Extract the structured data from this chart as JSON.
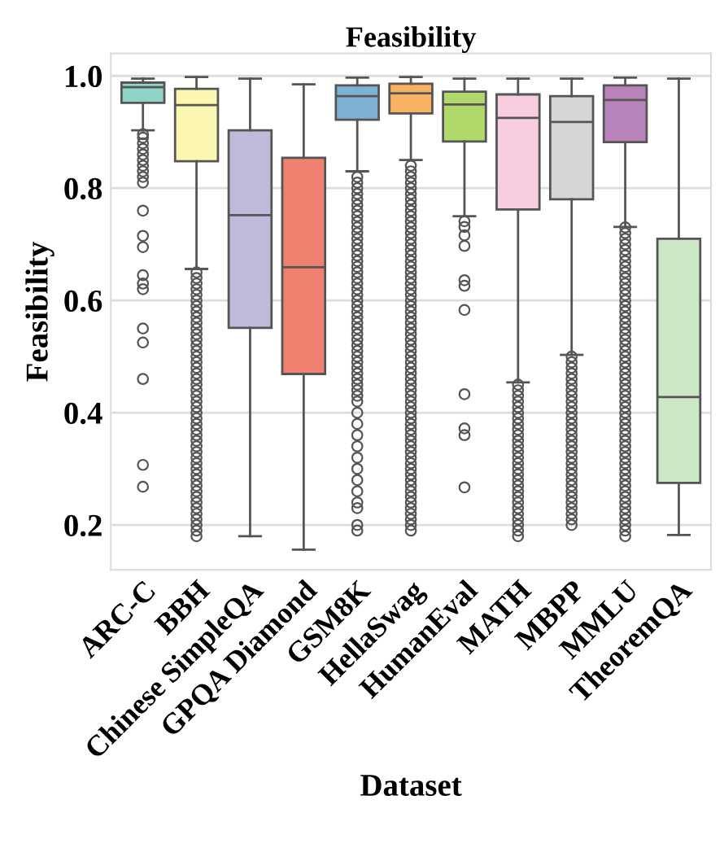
{
  "chart_data": {
    "type": "box",
    "title": "Feasibility",
    "xlabel": "Dataset",
    "ylabel": "Feasibility",
    "categories": [
      "ARC-C",
      "BBH",
      "Chinese SimpleQA",
      "GPQA Diamond",
      "GSM8K",
      "HellaSwag",
      "HumanEval",
      "MATH",
      "MBPP",
      "MMLU",
      "TheoremQA"
    ],
    "colors": [
      "#8dd3c7",
      "#fcf7b0",
      "#bebada",
      "#f08070",
      "#80b1d3",
      "#f8b062",
      "#b0d86a",
      "#f8cde0",
      "#d6d6d6",
      "#b983bb",
      "#cde8c6"
    ],
    "boxes": [
      {
        "low": 0.903,
        "q1": 0.952,
        "median": 0.98,
        "q3": 0.988,
        "high": 0.995,
        "outliers": [
          0.896,
          0.89,
          0.88,
          0.87,
          0.86,
          0.85,
          0.84,
          0.83,
          0.82,
          0.81,
          0.76,
          0.715,
          0.695,
          0.645,
          0.63,
          0.62,
          0.55,
          0.525,
          0.46,
          0.307,
          0.268
        ]
      },
      {
        "low": 0.656,
        "q1": 0.848,
        "median": 0.948,
        "q3": 0.977,
        "high": 0.998,
        "outliers": [
          0.65,
          0.64,
          0.63,
          0.62,
          0.61,
          0.6,
          0.59,
          0.58,
          0.57,
          0.56,
          0.55,
          0.54,
          0.53,
          0.52,
          0.51,
          0.5,
          0.49,
          0.48,
          0.47,
          0.46,
          0.45,
          0.44,
          0.43,
          0.42,
          0.41,
          0.4,
          0.39,
          0.38,
          0.37,
          0.36,
          0.35,
          0.34,
          0.33,
          0.32,
          0.31,
          0.3,
          0.29,
          0.28,
          0.27,
          0.26,
          0.25,
          0.24,
          0.23,
          0.22,
          0.21,
          0.2,
          0.19,
          0.18
        ]
      },
      {
        "low": 0.18,
        "q1": 0.551,
        "median": 0.752,
        "q3": 0.903,
        "high": 0.995
      },
      {
        "low": 0.156,
        "q1": 0.469,
        "median": 0.659,
        "q3": 0.854,
        "high": 0.985
      },
      {
        "low": 0.83,
        "q1": 0.922,
        "median": 0.964,
        "q3": 0.983,
        "high": 0.997,
        "outliers": [
          0.82,
          0.81,
          0.8,
          0.79,
          0.78,
          0.77,
          0.76,
          0.75,
          0.74,
          0.73,
          0.72,
          0.71,
          0.7,
          0.69,
          0.68,
          0.67,
          0.66,
          0.65,
          0.64,
          0.63,
          0.62,
          0.61,
          0.6,
          0.59,
          0.58,
          0.57,
          0.56,
          0.55,
          0.54,
          0.53,
          0.52,
          0.51,
          0.5,
          0.49,
          0.48,
          0.47,
          0.46,
          0.45,
          0.44,
          0.43,
          0.42,
          0.4,
          0.38,
          0.36,
          0.34,
          0.32,
          0.3,
          0.28,
          0.26,
          0.24,
          0.23,
          0.2,
          0.19
        ]
      },
      {
        "low": 0.85,
        "q1": 0.933,
        "median": 0.969,
        "q3": 0.986,
        "high": 0.998,
        "outliers": [
          0.84,
          0.83,
          0.82,
          0.81,
          0.8,
          0.79,
          0.78,
          0.77,
          0.76,
          0.75,
          0.74,
          0.73,
          0.72,
          0.71,
          0.7,
          0.69,
          0.68,
          0.67,
          0.66,
          0.65,
          0.64,
          0.63,
          0.62,
          0.61,
          0.6,
          0.59,
          0.58,
          0.57,
          0.56,
          0.55,
          0.54,
          0.53,
          0.52,
          0.51,
          0.5,
          0.49,
          0.48,
          0.47,
          0.46,
          0.45,
          0.44,
          0.43,
          0.42,
          0.41,
          0.4,
          0.39,
          0.38,
          0.37,
          0.36,
          0.35,
          0.34,
          0.33,
          0.32,
          0.31,
          0.3,
          0.29,
          0.28,
          0.27,
          0.26,
          0.25,
          0.24,
          0.23,
          0.22,
          0.21,
          0.2,
          0.19
        ]
      },
      {
        "low": 0.75,
        "q1": 0.883,
        "median": 0.949,
        "q3": 0.972,
        "high": 0.995,
        "outliers": [
          0.741,
          0.731,
          0.716,
          0.697,
          0.636,
          0.626,
          0.583,
          0.433,
          0.372,
          0.36,
          0.267
        ]
      },
      {
        "low": 0.454,
        "q1": 0.762,
        "median": 0.925,
        "q3": 0.967,
        "high": 0.995,
        "outliers": [
          0.45,
          0.44,
          0.43,
          0.42,
          0.41,
          0.4,
          0.39,
          0.38,
          0.37,
          0.36,
          0.35,
          0.34,
          0.33,
          0.32,
          0.31,
          0.3,
          0.29,
          0.28,
          0.27,
          0.26,
          0.25,
          0.24,
          0.23,
          0.22,
          0.21,
          0.2,
          0.19,
          0.18
        ]
      },
      {
        "low": 0.503,
        "q1": 0.78,
        "median": 0.918,
        "q3": 0.964,
        "high": 0.995,
        "outliers": [
          0.5,
          0.49,
          0.48,
          0.47,
          0.46,
          0.45,
          0.44,
          0.43,
          0.42,
          0.41,
          0.4,
          0.39,
          0.38,
          0.37,
          0.36,
          0.35,
          0.34,
          0.33,
          0.32,
          0.31,
          0.3,
          0.29,
          0.28,
          0.27,
          0.26,
          0.25,
          0.24,
          0.23,
          0.22,
          0.21,
          0.2
        ]
      },
      {
        "low": 0.731,
        "q1": 0.882,
        "median": 0.957,
        "q3": 0.983,
        "high": 0.997,
        "outliers": [
          0.73,
          0.72,
          0.71,
          0.7,
          0.69,
          0.68,
          0.67,
          0.66,
          0.65,
          0.64,
          0.63,
          0.62,
          0.61,
          0.6,
          0.59,
          0.58,
          0.57,
          0.56,
          0.55,
          0.54,
          0.53,
          0.52,
          0.51,
          0.5,
          0.49,
          0.48,
          0.47,
          0.46,
          0.45,
          0.44,
          0.43,
          0.42,
          0.41,
          0.4,
          0.39,
          0.38,
          0.37,
          0.36,
          0.35,
          0.34,
          0.33,
          0.32,
          0.31,
          0.3,
          0.29,
          0.28,
          0.27,
          0.26,
          0.25,
          0.24,
          0.23,
          0.22,
          0.21,
          0.2,
          0.19,
          0.18
        ]
      },
      {
        "low": 0.182,
        "q1": 0.275,
        "median": 0.428,
        "q3": 0.71,
        "high": 0.995
      }
    ],
    "ylim": [
      0.12,
      1.04
    ],
    "yticks": [
      0.2,
      0.4,
      0.6,
      0.8,
      {
        "value": 1.0,
        "label": "1.0"
      }
    ],
    "grid": "y"
  }
}
